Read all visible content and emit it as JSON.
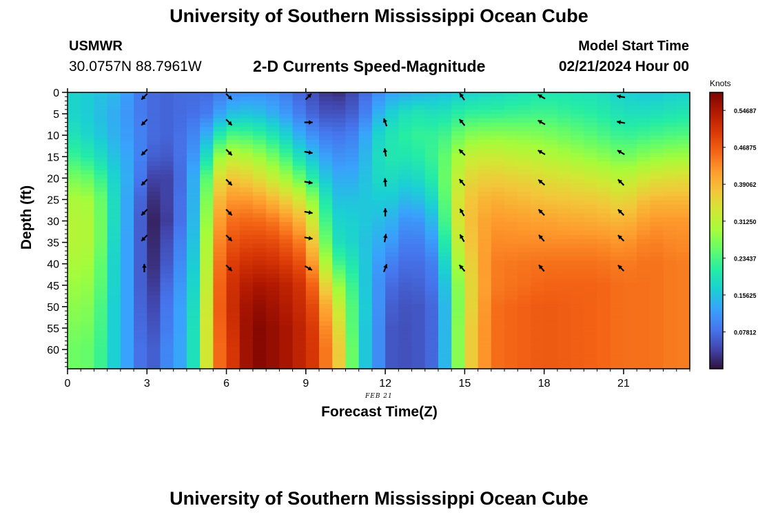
{
  "header": {
    "main_title": "University of Southern Mississippi Ocean Cube",
    "station_name": "USMWR",
    "station_coords": "30.0757N  88.7961W",
    "chart_title": "2-D Currents Speed-Magnitude",
    "start_label": "Model Start Time",
    "start_value": "02/21/2024 Hour 00",
    "date_stamp": "FEB 21",
    "bottom_title": "University of Southern Mississippi Ocean Cube"
  },
  "chart_data": {
    "type": "heatmap",
    "title": "2-D Currents Speed-Magnitude",
    "xlabel": "Forecast Time(Z)",
    "ylabel": "Depth (ft)",
    "xlim": [
      0,
      23.5
    ],
    "ylim": [
      0,
      64.5
    ],
    "xticks": [
      0,
      3,
      6,
      9,
      12,
      15,
      18,
      21
    ],
    "yticks": [
      0,
      5,
      10,
      15,
      20,
      25,
      30,
      35,
      40,
      45,
      50,
      55,
      60
    ],
    "colorbar": {
      "label": "Knots",
      "min": 0.0,
      "max": 0.585,
      "ticks": [
        "0.07812",
        "0.15625",
        "0.23437",
        "0.31250",
        "0.39062",
        "0.46875",
        "0.54687"
      ],
      "tick_values": [
        0.07812,
        0.15625,
        0.23437,
        0.3125,
        0.39062,
        0.46875,
        0.54687
      ]
    },
    "colormap": [
      "#30123b",
      "#4145ab",
      "#4675ed",
      "#39a2fc",
      "#1bcfd4",
      "#24eca6",
      "#61fc6c",
      "#a4fc3b",
      "#d1e834",
      "#f3c63a",
      "#fe9b2d",
      "#f36315",
      "#d93806",
      "#b11901",
      "#7a0402"
    ],
    "depths": [
      0,
      5,
      10,
      15,
      20,
      25,
      30,
      35,
      40,
      45,
      50,
      55,
      60,
      64.5
    ],
    "times": [
      0,
      0.5,
      1,
      1.5,
      2,
      2.5,
      3,
      3.5,
      4,
      4.5,
      5,
      5.5,
      6,
      6.5,
      7,
      7.5,
      8,
      8.5,
      9,
      9.5,
      10,
      10.5,
      11,
      11.5,
      12,
      12.5,
      13,
      13.5,
      14,
      14.5,
      15,
      15.5,
      16,
      16.5,
      17,
      17.5,
      18,
      18.5,
      19,
      19.5,
      20,
      20.5,
      21,
      21.5,
      22,
      22.5,
      23,
      23.5
    ],
    "speed_profiles": [
      {
        "t": 0,
        "speeds": [
          0.18,
          0.18,
          0.2,
          0.23,
          0.27,
          0.3,
          0.31,
          0.31,
          0.3,
          0.29,
          0.28,
          0.27,
          0.26,
          0.26
        ]
      },
      {
        "t": 1,
        "speeds": [
          0.16,
          0.16,
          0.17,
          0.2,
          0.25,
          0.29,
          0.3,
          0.3,
          0.29,
          0.28,
          0.27,
          0.26,
          0.25,
          0.25
        ]
      },
      {
        "t": 1.5,
        "speeds": [
          0.15,
          0.14,
          0.15,
          0.17,
          0.2,
          0.22,
          0.22,
          0.22,
          0.21,
          0.21,
          0.2,
          0.2,
          0.2,
          0.2
        ]
      },
      {
        "t": 2,
        "speeds": [
          0.14,
          0.13,
          0.13,
          0.14,
          0.15,
          0.15,
          0.15,
          0.14,
          0.14,
          0.14,
          0.14,
          0.14,
          0.14,
          0.14
        ]
      },
      {
        "t": 2.5,
        "speeds": [
          0.1,
          0.1,
          0.11,
          0.12,
          0.12,
          0.11,
          0.11,
          0.11,
          0.11,
          0.11,
          0.11,
          0.11,
          0.11,
          0.11
        ]
      },
      {
        "t": 3,
        "speeds": [
          0.08,
          0.08,
          0.08,
          0.07,
          0.05,
          0.03,
          0.02,
          0.02,
          0.02,
          0.02,
          0.03,
          0.04,
          0.05,
          0.05
        ]
      },
      {
        "t": 3.5,
        "speeds": [
          0.07,
          0.07,
          0.07,
          0.06,
          0.03,
          0.02,
          0.01,
          0.02,
          0.03,
          0.05,
          0.06,
          0.07,
          0.08,
          0.08
        ]
      },
      {
        "t": 4,
        "speeds": [
          0.07,
          0.07,
          0.07,
          0.06,
          0.05,
          0.06,
          0.06,
          0.08,
          0.09,
          0.1,
          0.11,
          0.11,
          0.12,
          0.12
        ]
      },
      {
        "t": 4.5,
        "speeds": [
          0.08,
          0.08,
          0.09,
          0.1,
          0.1,
          0.1,
          0.1,
          0.11,
          0.12,
          0.13,
          0.14,
          0.14,
          0.14,
          0.14
        ]
      },
      {
        "t": 5,
        "speeds": [
          0.07,
          0.08,
          0.11,
          0.13,
          0.17,
          0.18,
          0.19,
          0.2,
          0.21,
          0.22,
          0.23,
          0.24,
          0.24,
          0.24
        ]
      },
      {
        "t": 5.5,
        "speeds": [
          0.08,
          0.1,
          0.17,
          0.25,
          0.32,
          0.36,
          0.38,
          0.4,
          0.41,
          0.42,
          0.43,
          0.43,
          0.43,
          0.43
        ]
      },
      {
        "t": 6,
        "speeds": [
          0.1,
          0.15,
          0.24,
          0.32,
          0.38,
          0.42,
          0.45,
          0.47,
          0.49,
          0.5,
          0.5,
          0.49,
          0.48,
          0.48
        ]
      },
      {
        "t": 7,
        "speeds": [
          0.11,
          0.16,
          0.23,
          0.3,
          0.36,
          0.42,
          0.46,
          0.49,
          0.52,
          0.55,
          0.57,
          0.58,
          0.58,
          0.58
        ]
      },
      {
        "t": 8,
        "speeds": [
          0.1,
          0.13,
          0.19,
          0.25,
          0.31,
          0.38,
          0.44,
          0.48,
          0.51,
          0.54,
          0.55,
          0.56,
          0.56,
          0.56
        ]
      },
      {
        "t": 9,
        "speeds": [
          0.06,
          0.08,
          0.12,
          0.17,
          0.24,
          0.32,
          0.38,
          0.43,
          0.47,
          0.5,
          0.51,
          0.52,
          0.52,
          0.52
        ]
      },
      {
        "t": 9.5,
        "speeds": [
          0.04,
          0.06,
          0.1,
          0.14,
          0.18,
          0.24,
          0.28,
          0.32,
          0.37,
          0.42,
          0.46,
          0.48,
          0.49,
          0.49
        ]
      },
      {
        "t": 10,
        "speeds": [
          0.02,
          0.05,
          0.08,
          0.11,
          0.14,
          0.16,
          0.18,
          0.2,
          0.24,
          0.3,
          0.35,
          0.38,
          0.4,
          0.4
        ]
      },
      {
        "t": 10.5,
        "speeds": [
          0.03,
          0.06,
          0.09,
          0.11,
          0.13,
          0.15,
          0.17,
          0.18,
          0.22,
          0.27,
          0.3,
          0.32,
          0.34,
          0.34
        ]
      },
      {
        "t": 11,
        "speeds": [
          0.06,
          0.07,
          0.1,
          0.12,
          0.14,
          0.16,
          0.17,
          0.17,
          0.18,
          0.18,
          0.18,
          0.17,
          0.17,
          0.17
        ]
      },
      {
        "t": 11.5,
        "speeds": [
          0.09,
          0.12,
          0.16,
          0.17,
          0.17,
          0.16,
          0.15,
          0.14,
          0.14,
          0.14,
          0.15,
          0.15,
          0.15,
          0.15
        ]
      },
      {
        "t": 12,
        "speeds": [
          0.12,
          0.16,
          0.19,
          0.2,
          0.19,
          0.17,
          0.15,
          0.13,
          0.1,
          0.08,
          0.07,
          0.06,
          0.06,
          0.06
        ]
      },
      {
        "t": 13,
        "speeds": [
          0.14,
          0.2,
          0.22,
          0.2,
          0.17,
          0.14,
          0.1,
          0.08,
          0.07,
          0.06,
          0.05,
          0.05,
          0.05,
          0.05
        ]
      },
      {
        "t": 14,
        "speeds": [
          0.15,
          0.19,
          0.22,
          0.23,
          0.22,
          0.19,
          0.16,
          0.13,
          0.1,
          0.09,
          0.08,
          0.08,
          0.08,
          0.08
        ]
      },
      {
        "t": 14.5,
        "speeds": [
          0.16,
          0.2,
          0.24,
          0.27,
          0.29,
          0.3,
          0.3,
          0.28,
          0.25,
          0.22,
          0.21,
          0.21,
          0.21,
          0.21
        ]
      },
      {
        "t": 15,
        "speeds": [
          0.17,
          0.22,
          0.27,
          0.32,
          0.35,
          0.37,
          0.37,
          0.36,
          0.34,
          0.33,
          0.33,
          0.34,
          0.34,
          0.34
        ]
      },
      {
        "t": 16,
        "speeds": [
          0.18,
          0.22,
          0.28,
          0.33,
          0.37,
          0.4,
          0.42,
          0.43,
          0.44,
          0.44,
          0.45,
          0.45,
          0.45,
          0.45
        ]
      },
      {
        "t": 18,
        "speeds": [
          0.2,
          0.23,
          0.27,
          0.31,
          0.35,
          0.38,
          0.41,
          0.43,
          0.45,
          0.46,
          0.47,
          0.47,
          0.47,
          0.47
        ]
      },
      {
        "t": 20,
        "speeds": [
          0.19,
          0.21,
          0.24,
          0.28,
          0.33,
          0.37,
          0.4,
          0.43,
          0.45,
          0.46,
          0.46,
          0.46,
          0.46,
          0.46
        ]
      },
      {
        "t": 21,
        "speeds": [
          0.17,
          0.19,
          0.22,
          0.26,
          0.31,
          0.35,
          0.39,
          0.42,
          0.44,
          0.45,
          0.45,
          0.45,
          0.45,
          0.45
        ]
      },
      {
        "t": 22,
        "speeds": [
          0.16,
          0.19,
          0.23,
          0.28,
          0.34,
          0.39,
          0.42,
          0.44,
          0.45,
          0.45,
          0.45,
          0.45,
          0.45,
          0.45
        ]
      },
      {
        "t": 23,
        "speeds": [
          0.17,
          0.2,
          0.24,
          0.29,
          0.35,
          0.39,
          0.42,
          0.43,
          0.44,
          0.44,
          0.44,
          0.44,
          0.44,
          0.44
        ]
      },
      {
        "t": 23.5,
        "speeds": [
          0.17,
          0.2,
          0.24,
          0.29,
          0.35,
          0.39,
          0.42,
          0.43,
          0.44,
          0.44,
          0.44,
          0.44,
          0.44,
          0.44
        ]
      }
    ],
    "vector_times": [
      2.9,
      6.1,
      9.1,
      12.0,
      14.9,
      17.9,
      20.9
    ],
    "vector_depths": [
      1,
      7,
      14,
      21,
      28,
      34,
      41
    ],
    "vector_directions_deg": [
      [
        225,
        225,
        225,
        225,
        225,
        225,
        0
      ],
      [
        135,
        135,
        135,
        135,
        135,
        135,
        135
      ],
      [
        45,
        90,
        100,
        100,
        100,
        100,
        120
      ],
      [
        null,
        340,
        350,
        355,
        0,
        10,
        20
      ],
      [
        325,
        320,
        315,
        320,
        330,
        330,
        320
      ],
      [
        300,
        300,
        300,
        310,
        315,
        320,
        320
      ],
      [
        280,
        280,
        300,
        315,
        315,
        315,
        315
      ]
    ]
  }
}
